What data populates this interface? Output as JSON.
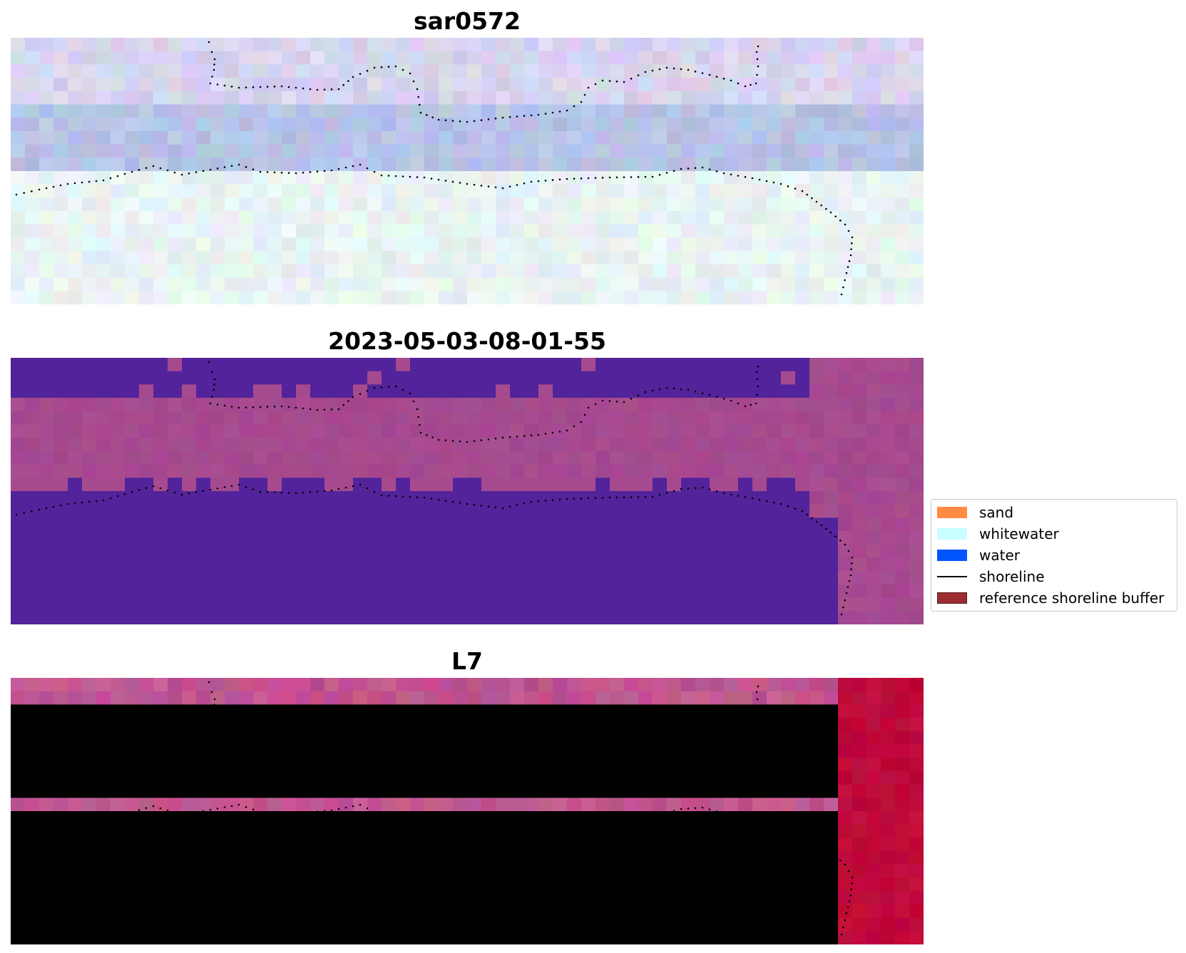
{
  "figure": {
    "panels": [
      {
        "id": "rgb",
        "title": "sar0572"
      },
      {
        "id": "class",
        "title": "2023-05-03-08-01-55"
      },
      {
        "id": "index",
        "title": "L7"
      }
    ]
  },
  "legend": {
    "items": [
      {
        "label": "sand",
        "kind": "patch",
        "color": "#ff8c42"
      },
      {
        "label": "whitewater",
        "kind": "patch",
        "color": "#c8ffff"
      },
      {
        "label": "water",
        "kind": "patch",
        "color": "#0055ff"
      },
      {
        "label": "shoreline",
        "kind": "line",
        "color": "#000000"
      },
      {
        "label": "reference shoreline buffer",
        "kind": "patch",
        "color": "#9b2d30"
      }
    ]
  },
  "colors": {
    "rgb_land": "#d8d4ee",
    "rgb_band": "#b7c3e6",
    "rgb_sea": "#e8f3f3",
    "class_water": "#52239a",
    "class_sand": "#a64a8f",
    "index_low": "#be0a3a",
    "index_mid": "#c0568f",
    "index_high": "#8a35a8",
    "shoreline_dots": "#000000"
  }
}
